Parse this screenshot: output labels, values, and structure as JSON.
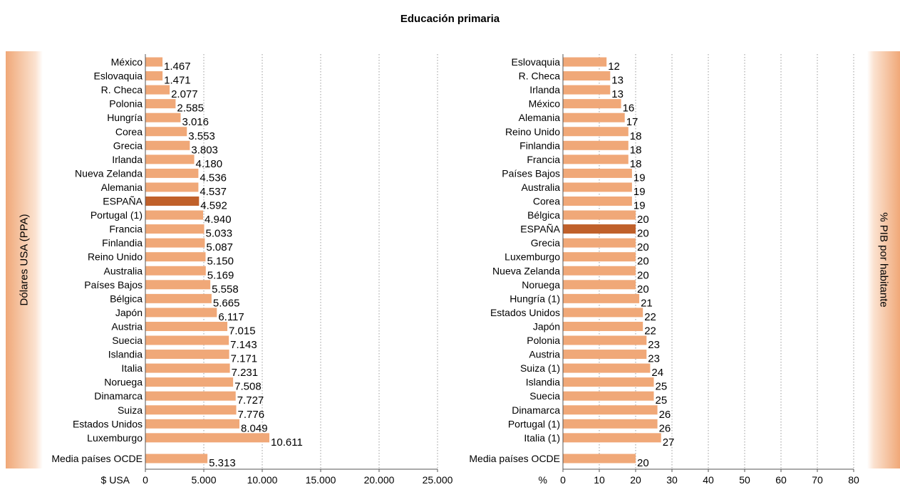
{
  "title": "Educación primaria",
  "colors": {
    "bar": "#f0a878",
    "highlight": "#c0602a",
    "grid": "#9a9a9a",
    "band": "#f0a878"
  },
  "chart_data": [
    {
      "type": "bar",
      "orientation": "horizontal",
      "side_label": "Dólares USA (PPA)",
      "xlabel": "$ USA",
      "xlim": [
        0,
        25000
      ],
      "ticks": [
        0,
        5000,
        10000,
        15000,
        20000,
        25000
      ],
      "tick_labels": [
        "0",
        "5.000",
        "10.000",
        "15.000",
        "20.000",
        "25.000"
      ],
      "grid": "vertical dotted",
      "highlight": "ESPAÑA",
      "categories": [
        "México",
        "Eslovaquia",
        "R. Checa",
        "Polonia",
        "Hungría",
        "Corea",
        "Grecia",
        "Irlanda",
        "Nueva Zelanda",
        "Alemania",
        "ESPAÑA",
        "Portugal (1)",
        "Francia",
        "Finlandia",
        "Reino Unido",
        "Australia",
        "Países Bajos",
        "Bélgica",
        "Japón",
        "Austria",
        "Suecia",
        "Islandia",
        "Italia",
        "Noruega",
        "Dinamarca",
        "Suiza",
        "Estados Unidos",
        "Luxemburgo"
      ],
      "values": [
        1467,
        1471,
        2077,
        2585,
        3016,
        3553,
        3803,
        4180,
        4536,
        4537,
        4592,
        4940,
        5033,
        5087,
        5150,
        5169,
        5558,
        5665,
        6117,
        7015,
        7143,
        7171,
        7231,
        7508,
        7727,
        7776,
        8049,
        10611
      ],
      "value_labels": [
        "1.467",
        "1.471",
        "2.077",
        "2.585",
        "3.016",
        "3.553",
        "3.803",
        "4.180",
        "4.536",
        "4.537",
        "4.592",
        "4.940",
        "5.033",
        "5.087",
        "5.150",
        "5.169",
        "5.558",
        "5.665",
        "6.117",
        "7.015",
        "7.143",
        "7.171",
        "7.231",
        "7.508",
        "7.727",
        "7.776",
        "8.049",
        "10.611"
      ],
      "average": {
        "label": "Media países OCDE",
        "value": 5313,
        "value_label": "5.313"
      }
    },
    {
      "type": "bar",
      "orientation": "horizontal",
      "side_label": "% PIB por habitante",
      "xlabel": "%",
      "xlim": [
        0,
        80
      ],
      "ticks": [
        0,
        10,
        20,
        30,
        40,
        50,
        60,
        70,
        80
      ],
      "tick_labels": [
        "0",
        "10",
        "20",
        "30",
        "40",
        "50",
        "60",
        "70",
        "80"
      ],
      "grid": "vertical dotted",
      "highlight": "ESPAÑA",
      "categories": [
        "Eslovaquia",
        "R. Checa",
        "Irlanda",
        "México",
        "Alemania",
        "Reino Unido",
        "Finlandia",
        "Francia",
        "Países Bajos",
        "Australia",
        "Corea",
        "Bélgica",
        "ESPAÑA",
        "Grecia",
        "Luxemburgo",
        "Nueva Zelanda",
        "Noruega",
        "Hungría (1)",
        "Estados Unidos",
        "Japón",
        "Polonia",
        "Austria",
        "Suiza (1)",
        "Islandia",
        "Suecia",
        "Dinamarca",
        "Portugal (1)",
        "Italia (1)"
      ],
      "values": [
        12,
        13,
        13,
        16,
        17,
        18,
        18,
        18,
        19,
        19,
        19,
        20,
        20,
        20,
        20,
        20,
        20,
        21,
        22,
        22,
        23,
        23,
        24,
        25,
        25,
        26,
        26,
        27
      ],
      "value_labels": [
        "12",
        "13",
        "13",
        "16",
        "17",
        "18",
        "18",
        "18",
        "19",
        "19",
        "19",
        "20",
        "20",
        "20",
        "20",
        "20",
        "20",
        "21",
        "22",
        "22",
        "23",
        "23",
        "24",
        "25",
        "25",
        "26",
        "26",
        "27"
      ],
      "average": {
        "label": "Media países OCDE",
        "value": 20,
        "value_label": "20"
      }
    }
  ]
}
